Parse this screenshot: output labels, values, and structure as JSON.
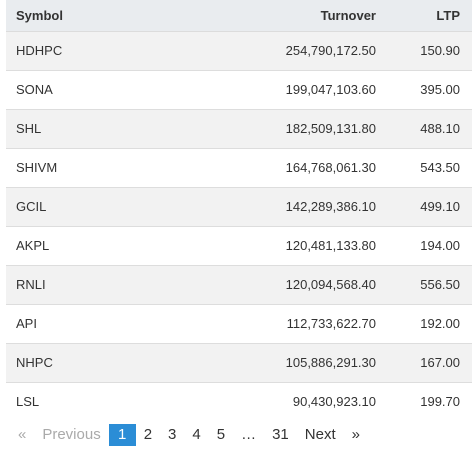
{
  "table": {
    "headers": {
      "symbol": "Symbol",
      "turnover": "Turnover",
      "ltp": "LTP"
    },
    "rows": [
      {
        "symbol": "HDHPC",
        "turnover": "254,790,172.50",
        "ltp": "150.90"
      },
      {
        "symbol": "SONA",
        "turnover": "199,047,103.60",
        "ltp": "395.00"
      },
      {
        "symbol": "SHL",
        "turnover": "182,509,131.80",
        "ltp": "488.10"
      },
      {
        "symbol": "SHIVM",
        "turnover": "164,768,061.30",
        "ltp": "543.50"
      },
      {
        "symbol": "GCIL",
        "turnover": "142,289,386.10",
        "ltp": "499.10"
      },
      {
        "symbol": "AKPL",
        "turnover": "120,481,133.80",
        "ltp": "194.00"
      },
      {
        "symbol": "RNLI",
        "turnover": "120,094,568.40",
        "ltp": "556.50"
      },
      {
        "symbol": "API",
        "turnover": "112,733,622.70",
        "ltp": "192.00"
      },
      {
        "symbol": "NHPC",
        "turnover": "105,886,291.30",
        "ltp": "167.00"
      },
      {
        "symbol": "LSL",
        "turnover": "90,430,923.10",
        "ltp": "199.70"
      }
    ]
  },
  "pagination": {
    "prev_arrow": "«",
    "previous": "Previous",
    "pages": [
      "1",
      "2",
      "3",
      "4",
      "5"
    ],
    "current": "1",
    "ellipsis": "…",
    "last": "31",
    "next": "Next",
    "next_arrow": "»"
  },
  "colors": {
    "header_bg": "#e9ecef",
    "row_odd": "#f2f2f2",
    "row_even": "#ffffff",
    "current_page": "#2b8dd6",
    "disabled_text": "#aaaaaa"
  }
}
